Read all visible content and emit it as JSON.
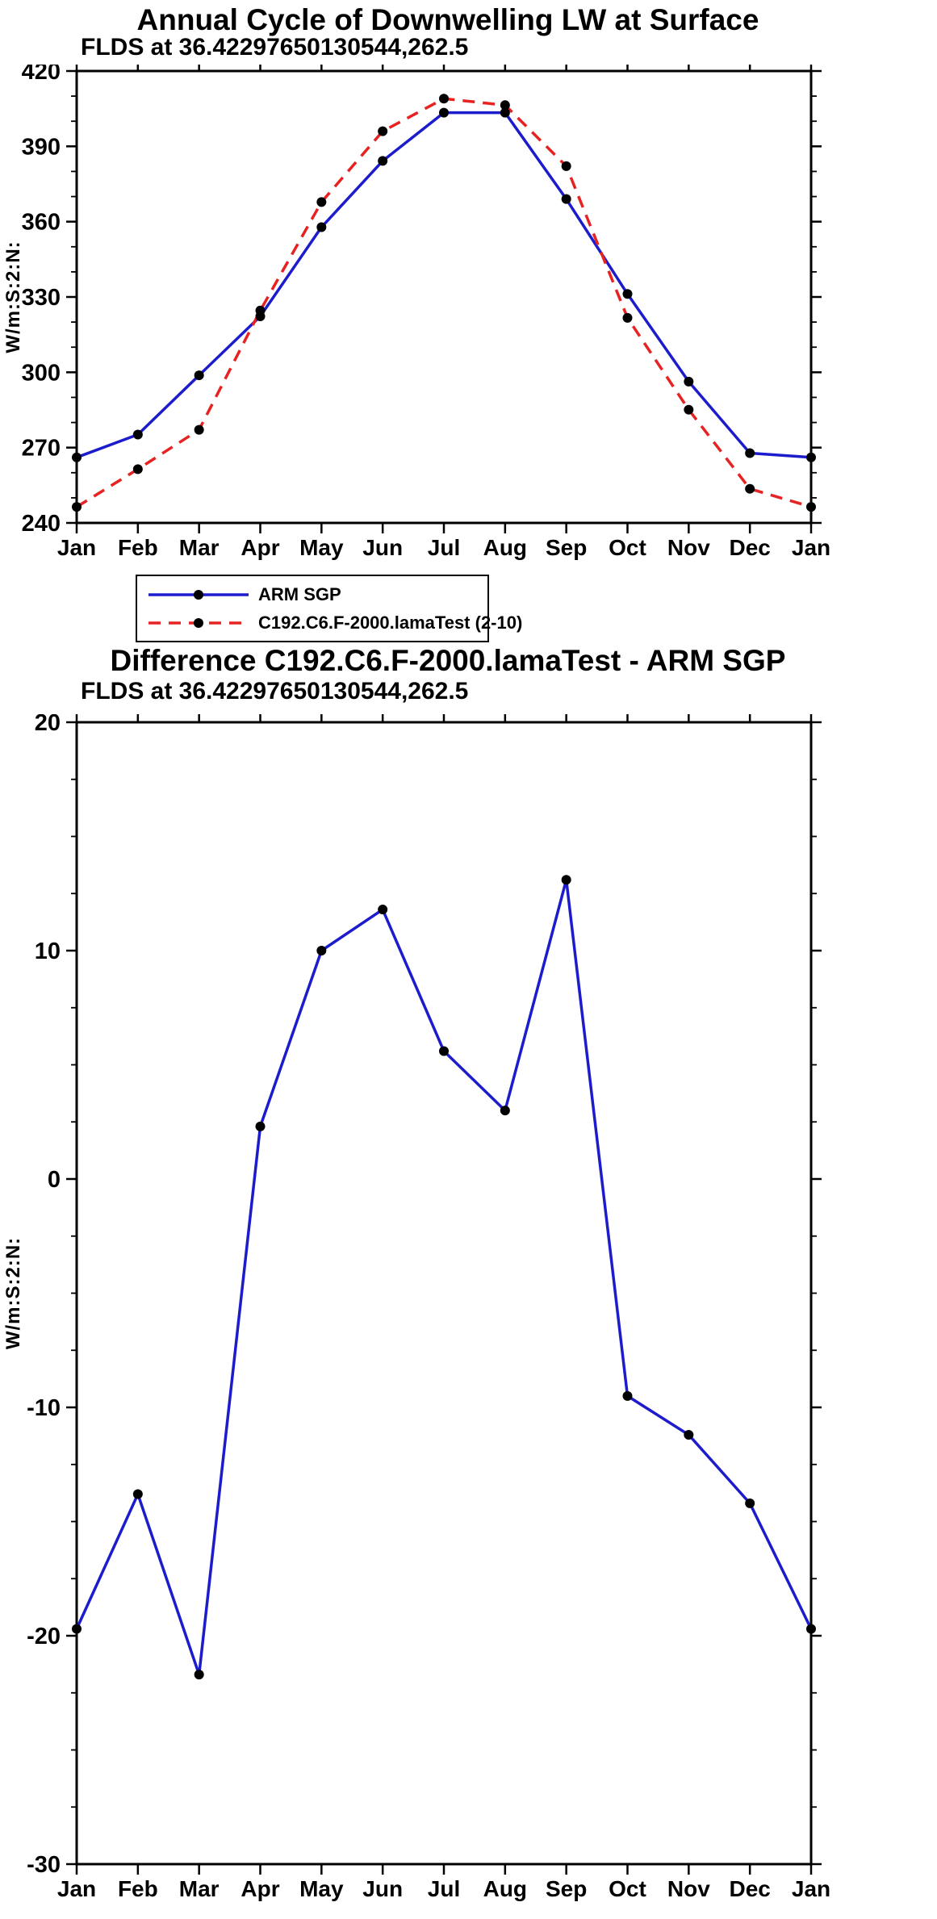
{
  "style": {
    "background": "#ffffff",
    "axis_color": "#000000",
    "marker_color": "#000000",
    "arm_blue": "#1c1ccd",
    "model_red": "#e62222"
  },
  "chart_data": [
    {
      "type": "line",
      "title": "Annual Cycle of Downwelling LW at Surface",
      "subtitle": "FLDS at 36.42297650130544,262.5",
      "ylabel": "W/m:S:2:N:",
      "xlabel": "",
      "categories": [
        "Jan",
        "Feb",
        "Mar",
        "Apr",
        "May",
        "Jun",
        "Jul",
        "Aug",
        "Sep",
        "Oct",
        "Nov",
        "Dec",
        "Jan"
      ],
      "ylim": [
        240,
        420
      ],
      "ytick_major": 30,
      "ytick_minor": 10,
      "grid": false,
      "series": [
        {
          "name": "ARM SGP",
          "color": "#1c1ccd",
          "line_style": "solid",
          "values": [
            266.1,
            275.2,
            298.8,
            322.3,
            357.8,
            384.2,
            403.4,
            403.4,
            369.0,
            331.2,
            296.3,
            267.8,
            266.1
          ]
        },
        {
          "name": "C192.C6.F-2000.lamaTest (2-10)",
          "color": "#e62222",
          "line_style": "dashed",
          "values": [
            246.4,
            261.4,
            277.1,
            324.6,
            367.8,
            396.0,
            409.0,
            406.4,
            382.1,
            321.7,
            285.1,
            253.6,
            246.4
          ]
        }
      ]
    },
    {
      "type": "line",
      "title": "Difference C192.C6.F-2000.lamaTest - ARM SGP",
      "subtitle": "FLDS at 36.42297650130544,262.5",
      "ylabel": "W/m:S:2:N:",
      "xlabel": "",
      "categories": [
        "Jan",
        "Feb",
        "Mar",
        "Apr",
        "May",
        "Jun",
        "Jul",
        "Aug",
        "Sep",
        "Oct",
        "Nov",
        "Dec",
        "Jan"
      ],
      "ylim": [
        -30,
        20
      ],
      "ytick_major": 10,
      "ytick_minor": 2.5,
      "grid": false,
      "series": [
        {
          "name": "Difference",
          "color": "#1c1ccd",
          "line_style": "solid",
          "values": [
            -19.7,
            -13.8,
            -21.7,
            2.3,
            10.0,
            11.8,
            5.6,
            3.0,
            13.1,
            -9.5,
            -11.2,
            -14.2,
            -19.7
          ]
        }
      ]
    }
  ],
  "legend": {
    "entries": [
      {
        "label": "ARM SGP",
        "color": "#1c1ccd",
        "line_style": "solid"
      },
      {
        "label": "C192.C6.F-2000.lamaTest (2-10)",
        "color": "#e62222",
        "line_style": "dashed"
      }
    ]
  }
}
